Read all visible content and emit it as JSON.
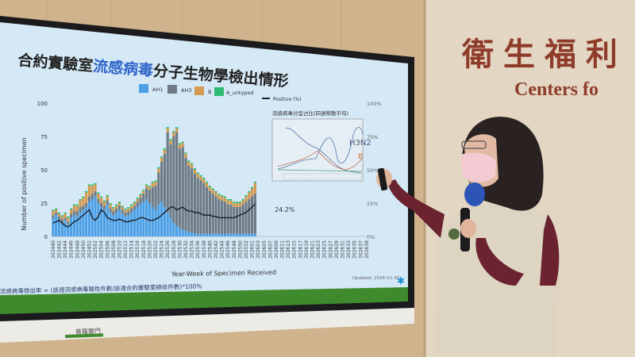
{
  "wall_sign": {
    "chinese": "衛生福利",
    "english": "Centers fo"
  },
  "slide": {
    "title_part1": "合約實驗室",
    "title_part2": "流感病毒",
    "title_part3": "分子生物學檢出情形",
    "formula": "流感病毒檢出率 = (該週流感病毒陽性件數/該週合約實驗室總收件數)*100%",
    "updated": "Updated: 2026-01-30",
    "last_positive_label": "24.2%",
    "inset_title": "流感病毒分型占比(四週移動平均)",
    "inset_labels": {
      "h3n2": "H3N2",
      "b": "B"
    },
    "bezel_label": "普羅蘭門"
  },
  "chart_data": {
    "type": "bar",
    "stacked": true,
    "xlabel": "Year-Week of Specimen Received",
    "ylabel": "Number of positive specimen",
    "ylim": [
      0,
      100
    ],
    "yticks": [
      "0",
      "25",
      "50",
      "75",
      "100"
    ],
    "y2lim": [
      0,
      100
    ],
    "y2ticks": [
      "0%",
      "25%",
      "50%",
      "75%",
      "100%"
    ],
    "legend": [
      "AH1",
      "AH3",
      "B",
      "A_untyped",
      "Positive (%)"
    ],
    "legend_position": "top",
    "colors": {
      "AH1": "#4a9fe6",
      "AH3": "#6e7a86",
      "B": "#d49a4e",
      "A_untyped": "#2dbb6f",
      "Positive": "#1b1f2a"
    },
    "xticks": [
      "202440",
      "202442",
      "202444",
      "202446",
      "202448",
      "202450",
      "202452",
      "202502",
      "202504",
      "202506",
      "202508",
      "202510",
      "202512",
      "202514",
      "202516",
      "202518",
      "202520",
      "202522",
      "202524",
      "202526",
      "202528",
      "202530",
      "202532",
      "202534",
      "202536",
      "202538",
      "202540",
      "202542",
      "202544",
      "202546",
      "202548",
      "202550",
      "202552",
      "202601",
      "202603",
      "202605",
      "202607",
      "202609",
      "202611",
      "202613",
      "202615",
      "202617",
      "202619",
      "202621",
      "202623",
      "202625",
      "202627",
      "202629",
      "202631",
      "202633",
      "202635",
      "202637",
      "202639"
    ],
    "series": [
      {
        "name": "AH1",
        "values": [
          14,
          16,
          12,
          10,
          12,
          9,
          14,
          16,
          15,
          18,
          20,
          22,
          26,
          28,
          30,
          25,
          22,
          20,
          24,
          18,
          16,
          18,
          20,
          17,
          15,
          16,
          18,
          20,
          22,
          24,
          26,
          28,
          25,
          22,
          20,
          24,
          26,
          22,
          18,
          14,
          10,
          8,
          6,
          5,
          4,
          3,
          3,
          2,
          2,
          2,
          2,
          2,
          2,
          2,
          2,
          2,
          2,
          2,
          2,
          2,
          2,
          2,
          2,
          2,
          2,
          2,
          2,
          2
        ]
      },
      {
        "name": "AH3",
        "values": [
          2,
          2,
          3,
          3,
          2,
          2,
          3,
          3,
          4,
          4,
          3,
          3,
          4,
          4,
          4,
          3,
          3,
          3,
          3,
          3,
          3,
          3,
          3,
          3,
          3,
          3,
          3,
          3,
          4,
          5,
          6,
          8,
          10,
          15,
          18,
          24,
          30,
          40,
          60,
          55,
          65,
          70,
          60,
          62,
          55,
          50,
          48,
          45,
          42,
          40,
          38,
          35,
          32,
          30,
          28,
          26,
          25,
          24,
          22,
          22,
          20,
          20,
          20,
          22,
          24,
          26,
          28,
          30
        ]
      },
      {
        "name": "B",
        "values": [
          3,
          2,
          2,
          2,
          3,
          3,
          3,
          4,
          4,
          5,
          6,
          8,
          8,
          6,
          5,
          4,
          4,
          3,
          3,
          3,
          2,
          2,
          2,
          2,
          2,
          2,
          2,
          2,
          2,
          2,
          2,
          2,
          2,
          3,
          3,
          3,
          3,
          3,
          3,
          3,
          3,
          3,
          3,
          3,
          3,
          3,
          3,
          3,
          3,
          3,
          3,
          3,
          3,
          3,
          3,
          3,
          3,
          3,
          3,
          3,
          3,
          3,
          3,
          3,
          4,
          5,
          6,
          8
        ]
      },
      {
        "name": "A_untyped",
        "values": [
          1,
          1,
          1,
          1,
          1,
          1,
          1,
          1,
          1,
          1,
          1,
          1,
          1,
          1,
          1,
          1,
          1,
          1,
          1,
          1,
          1,
          1,
          1,
          1,
          1,
          1,
          1,
          1,
          1,
          1,
          1,
          1,
          1,
          1,
          1,
          1,
          1,
          1,
          1,
          1,
          1,
          1,
          1,
          1,
          1,
          1,
          1,
          1,
          1,
          1,
          1,
          1,
          1,
          1,
          1,
          1,
          1,
          1,
          1,
          1,
          1,
          1,
          1,
          1,
          1,
          1,
          1,
          1
        ]
      },
      {
        "name": "Positive (%)",
        "axis": "right",
        "values": [
          10,
          11,
          12,
          10,
          8,
          7,
          9,
          11,
          12,
          14,
          16,
          18,
          20,
          14,
          12,
          15,
          20,
          18,
          14,
          13,
          12,
          12,
          13,
          12,
          11,
          11,
          12,
          12,
          13,
          14,
          14,
          13,
          12,
          12,
          13,
          14,
          16,
          18,
          20,
          22,
          22,
          20,
          21,
          22,
          20,
          19,
          19,
          18,
          18,
          17,
          16,
          16,
          16,
          15,
          15,
          14,
          14,
          14,
          14,
          14,
          14,
          15,
          16,
          17,
          18,
          20,
          22,
          24.2
        ]
      }
    ]
  }
}
